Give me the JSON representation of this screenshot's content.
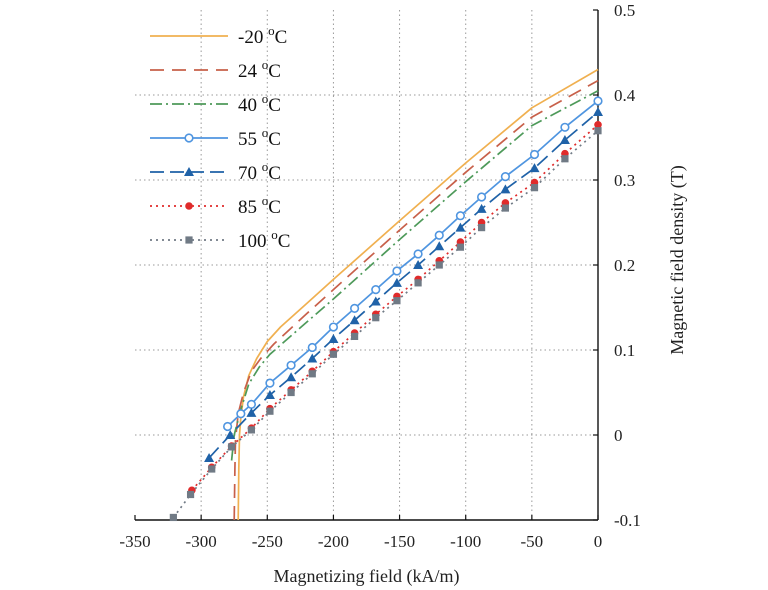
{
  "chart_data": {
    "type": "line",
    "title": "",
    "xlabel": "Magnetizing field (kA/m)",
    "ylabel": "Magnetic field density (T)",
    "xlim": [
      -350,
      0
    ],
    "ylim": [
      -0.1,
      0.5
    ],
    "x_ticks": [
      -350,
      -300,
      -250,
      -200,
      -150,
      -100,
      -50,
      0
    ],
    "x_tick_labels": [
      "-350",
      "-300",
      "-250",
      "-200",
      "-150",
      "-100",
      "-50",
      "0"
    ],
    "y_ticks": [
      -0.1,
      0,
      0.1,
      0.2,
      0.3,
      0.4,
      0.5
    ],
    "y_tick_labels": [
      "-0.1",
      "0",
      "0.1",
      "0.2",
      "0.3",
      "0.4",
      "0.5"
    ],
    "grid": true,
    "legend_position": "top-left",
    "series": [
      {
        "name": "-20",
        "unit": "°C",
        "color": "#f0b050",
        "dash": "solid",
        "marker": "none",
        "points": [
          [
            -272,
            -0.1
          ],
          [
            -271.5,
            -0.04
          ],
          [
            -271,
            0.0
          ],
          [
            -270,
            0.02
          ],
          [
            -268,
            0.045
          ],
          [
            -264,
            0.07
          ],
          [
            -258,
            0.09
          ],
          [
            -250,
            0.11
          ],
          [
            -240,
            0.127
          ],
          [
            -220,
            0.155
          ],
          [
            -200,
            0.183
          ],
          [
            -150,
            0.252
          ],
          [
            -100,
            0.32
          ],
          [
            -50,
            0.385
          ],
          [
            0,
            0.43
          ]
        ]
      },
      {
        "name": "24",
        "unit": "°C",
        "color": "#c8604a",
        "dash": "14,8",
        "marker": "none",
        "points": [
          [
            -275,
            -0.1
          ],
          [
            -274.5,
            -0.04
          ],
          [
            -274,
            -0.005
          ],
          [
            -272,
            0.025
          ],
          [
            -268,
            0.05
          ],
          [
            -262,
            0.075
          ],
          [
            -255,
            0.09
          ],
          [
            -245,
            0.107
          ],
          [
            -220,
            0.143
          ],
          [
            -200,
            0.171
          ],
          [
            -150,
            0.241
          ],
          [
            -100,
            0.309
          ],
          [
            -50,
            0.374
          ],
          [
            0,
            0.417
          ]
        ]
      },
      {
        "name": "40",
        "unit": "°C",
        "color": "#4e9a5a",
        "dash": "12,4,2,4",
        "marker": "none",
        "points": [
          [
            -277,
            -0.03
          ],
          [
            -275,
            0.0
          ],
          [
            -270,
            0.03
          ],
          [
            -264,
            0.06
          ],
          [
            -256,
            0.08
          ],
          [
            -248,
            0.095
          ],
          [
            -220,
            0.133
          ],
          [
            -200,
            0.16
          ],
          [
            -150,
            0.23
          ],
          [
            -100,
            0.298
          ],
          [
            -50,
            0.364
          ],
          [
            0,
            0.405
          ]
        ]
      },
      {
        "name": "55",
        "unit": "°C",
        "color": "#4f95e0",
        "dash": "solid",
        "marker": "open-circle",
        "points": [
          [
            -280,
            0.01
          ],
          [
            -270,
            0.025
          ],
          [
            -262,
            0.036
          ],
          [
            -248,
            0.061
          ],
          [
            -232,
            0.082
          ],
          [
            -216,
            0.103
          ],
          [
            -200,
            0.127
          ],
          [
            -184,
            0.149
          ],
          [
            -168,
            0.171
          ],
          [
            -152,
            0.193
          ],
          [
            -136,
            0.213
          ],
          [
            -120,
            0.235
          ],
          [
            -104,
            0.258
          ],
          [
            -88,
            0.28
          ],
          [
            -70,
            0.304
          ],
          [
            -48,
            0.33
          ],
          [
            -25,
            0.362
          ],
          [
            0,
            0.393
          ]
        ]
      },
      {
        "name": "70",
        "unit": "°C",
        "color": "#1f62a8",
        "dash": "14,6",
        "marker": "filled-triangle",
        "points": [
          [
            -294,
            -0.027
          ],
          [
            -278,
            0.0
          ],
          [
            -262,
            0.026
          ],
          [
            -248,
            0.047
          ],
          [
            -232,
            0.068
          ],
          [
            -216,
            0.09
          ],
          [
            -200,
            0.113
          ],
          [
            -184,
            0.135
          ],
          [
            -168,
            0.157
          ],
          [
            -152,
            0.179
          ],
          [
            -136,
            0.2
          ],
          [
            -120,
            0.222
          ],
          [
            -104,
            0.244
          ],
          [
            -88,
            0.266
          ],
          [
            -70,
            0.289
          ],
          [
            -48,
            0.314
          ],
          [
            -25,
            0.347
          ],
          [
            0,
            0.38
          ]
        ]
      },
      {
        "name": "85",
        "unit": "°C",
        "color": "#e02b2b",
        "dash": "2,4",
        "marker": "filled-circle",
        "points": [
          [
            -307,
            -0.065
          ],
          [
            -292,
            -0.038
          ],
          [
            -277,
            -0.013
          ],
          [
            -262,
            0.008
          ],
          [
            -248,
            0.031
          ],
          [
            -232,
            0.053
          ],
          [
            -216,
            0.075
          ],
          [
            -200,
            0.098
          ],
          [
            -184,
            0.12
          ],
          [
            -168,
            0.142
          ],
          [
            -152,
            0.163
          ],
          [
            -136,
            0.183
          ],
          [
            -120,
            0.205
          ],
          [
            -104,
            0.227
          ],
          [
            -88,
            0.25
          ],
          [
            -70,
            0.273
          ],
          [
            -48,
            0.297
          ],
          [
            -25,
            0.331
          ],
          [
            0,
            0.365
          ]
        ]
      },
      {
        "name": "100",
        "unit": "°C",
        "color": "#707a85",
        "dash": "2,4",
        "marker": "filled-square",
        "points": [
          [
            -321,
            -0.097
          ],
          [
            -308,
            -0.07
          ],
          [
            -292,
            -0.04
          ],
          [
            -277,
            -0.014
          ],
          [
            -262,
            0.006
          ],
          [
            -248,
            0.028
          ],
          [
            -232,
            0.05
          ],
          [
            -216,
            0.072
          ],
          [
            -200,
            0.095
          ],
          [
            -184,
            0.116
          ],
          [
            -168,
            0.138
          ],
          [
            -152,
            0.158
          ],
          [
            -136,
            0.179
          ],
          [
            -120,
            0.2
          ],
          [
            -104,
            0.221
          ],
          [
            -88,
            0.244
          ],
          [
            -70,
            0.267
          ],
          [
            -48,
            0.291
          ],
          [
            -25,
            0.325
          ],
          [
            0,
            0.358
          ]
        ]
      }
    ]
  }
}
